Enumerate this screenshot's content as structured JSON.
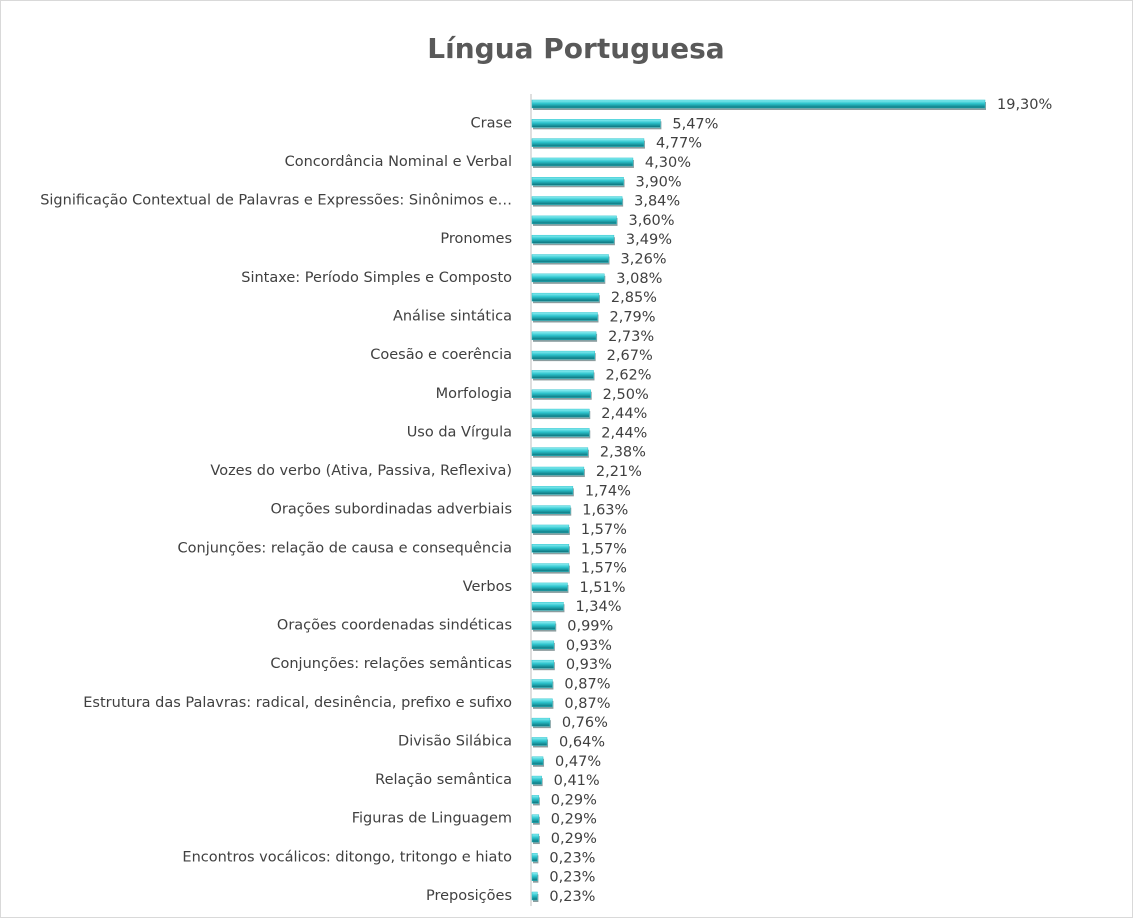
{
  "chart_data": {
    "type": "hbar",
    "title": "Língua Portuguesa",
    "color": "#2cc3cc",
    "categories": [
      null,
      "Crase",
      null,
      "Concordância Nominal e Verbal",
      null,
      "Significação Contextual de Palavras e Expressões: Sinônimos e…",
      null,
      "Pronomes",
      null,
      "Sintaxe: Período Simples e Composto",
      null,
      "Análise sintática",
      null,
      "Coesão e coerência",
      null,
      "Morfologia",
      null,
      "Uso da Vírgula",
      null,
      "Vozes do verbo (Ativa, Passiva, Reflexiva)",
      null,
      "Orações subordinadas adverbiais",
      null,
      "Conjunções: relação de causa e consequência",
      null,
      "Verbos",
      null,
      "Orações coordenadas sindéticas",
      null,
      "Conjunções: relações semânticas",
      null,
      "Estrutura das Palavras: radical, desinência, prefixo e sufixo",
      null,
      "Divisão Silábica",
      null,
      "Relação semântica",
      null,
      "Figuras de Linguagem",
      null,
      "Encontros vocálicos: ditongo, tritongo e hiato",
      null,
      "Preposições"
    ],
    "values": [
      19.3,
      5.47,
      4.77,
      4.3,
      3.9,
      3.84,
      3.6,
      3.49,
      3.26,
      3.08,
      2.85,
      2.79,
      2.73,
      2.67,
      2.62,
      2.5,
      2.44,
      2.44,
      2.38,
      2.21,
      1.74,
      1.63,
      1.57,
      1.57,
      1.57,
      1.51,
      1.34,
      0.99,
      0.93,
      0.93,
      0.87,
      0.87,
      0.76,
      0.64,
      0.47,
      0.41,
      0.29,
      0.29,
      0.29,
      0.23,
      0.23,
      0.23
    ],
    "value_labels": [
      "19,30%",
      "5,47%",
      "4,77%",
      "4,30%",
      "3,90%",
      "3,84%",
      "3,60%",
      "3,49%",
      "3,26%",
      "3,08%",
      "2,85%",
      "2,79%",
      "2,73%",
      "2,67%",
      "2,62%",
      "2,50%",
      "2,44%",
      "2,44%",
      "2,38%",
      "2,21%",
      "1,74%",
      "1,63%",
      "1,57%",
      "1,57%",
      "1,57%",
      "1,51%",
      "1,34%",
      "0,99%",
      "0,93%",
      "0,93%",
      "0,87%",
      "0,87%",
      "0,76%",
      "0,64%",
      "0,47%",
      "0,41%",
      "0,29%",
      "0,29%",
      "0,29%",
      "0,23%",
      "0,23%",
      "0,23%"
    ]
  }
}
